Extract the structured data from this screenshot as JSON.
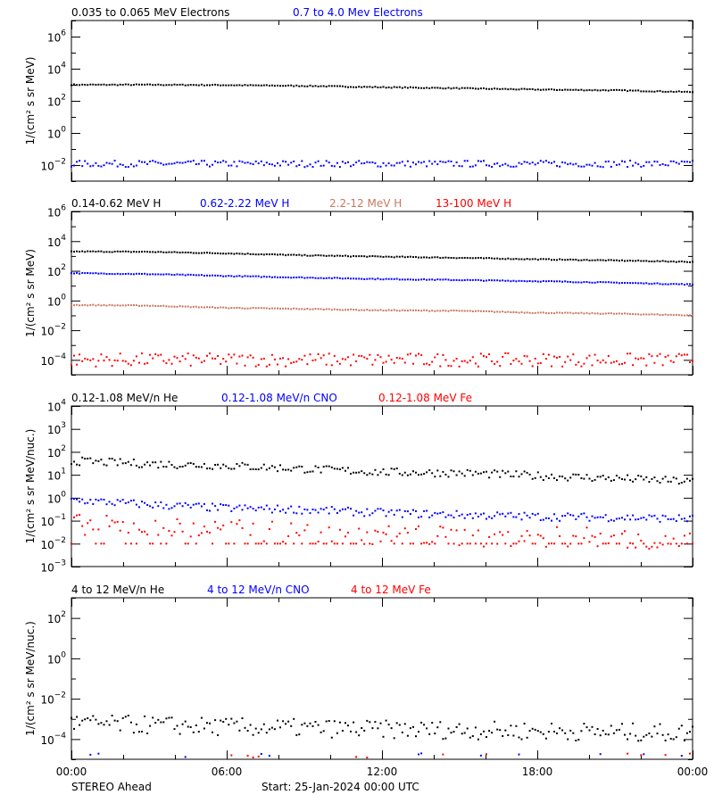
{
  "chart_data": [
    {
      "type": "scatter",
      "yscale": "log",
      "ylim": [
        0.001,
        10000000
      ],
      "ytick_exponents": [
        6,
        4,
        2,
        0,
        -2
      ],
      "ylabel": "1/(cm² s sr MeV)",
      "x_hours": [
        0,
        3,
        6,
        9,
        12,
        15,
        18,
        21,
        24
      ],
      "series": [
        {
          "name": "0.035 to 0.065 MeV Electrons",
          "color": "#000000",
          "values": [
            1000,
            1000,
            950,
            850,
            700,
            600,
            500,
            450,
            350
          ]
        },
        {
          "name": "0.7 to 4.0 Mev Electrons",
          "color": "#0000ff",
          "values": [
            0.012,
            0.012,
            0.012,
            0.012,
            0.012,
            0.012,
            0.012,
            0.012,
            0.012
          ]
        }
      ]
    },
    {
      "type": "scatter",
      "yscale": "log",
      "ylim": [
        1e-05,
        1000000
      ],
      "ytick_exponents": [
        6,
        4,
        2,
        0,
        -2,
        -4
      ],
      "ylabel": "1/(cm² s sr MeV)",
      "x_hours": [
        0,
        3,
        6,
        9,
        12,
        15,
        18,
        21,
        24
      ],
      "series": [
        {
          "name": "0.14-0.62 MeV H",
          "color": "#000000",
          "values": [
            2000,
            1900,
            1500,
            1100,
            900,
            750,
            600,
            500,
            400
          ]
        },
        {
          "name": "0.62-2.22 MeV H",
          "color": "#0000ff",
          "values": [
            70,
            60,
            45,
            35,
            28,
            24,
            20,
            16,
            12
          ]
        },
        {
          "name": "2.2-12 MeV H",
          "color": "#c87860",
          "values": [
            0.5,
            0.45,
            0.32,
            0.27,
            0.22,
            0.2,
            0.15,
            0.13,
            0.1
          ]
        },
        {
          "name": "13-100 MeV H",
          "color": "#ff0000",
          "values": [
            0.0001,
            0.0001,
            0.0001,
            0.0001,
            0.0001,
            0.0001,
            0.0001,
            0.0001,
            0.0001
          ]
        }
      ]
    },
    {
      "type": "scatter",
      "yscale": "log",
      "ylim": [
        0.001,
        10000
      ],
      "ytick_exponents": [
        4,
        3,
        2,
        1,
        0,
        -1,
        -2,
        -3
      ],
      "ylabel": "1/(cm² s sr MeV/nuc.)",
      "x_hours": [
        0,
        3,
        6,
        9,
        12,
        15,
        18,
        21,
        24
      ],
      "series": [
        {
          "name": "0.12-1.08 MeV/n He",
          "color": "#000000",
          "values": [
            40,
            30,
            25,
            18,
            13,
            12,
            9,
            7,
            5
          ]
        },
        {
          "name": "0.12-1.08 MeV/n CNO",
          "color": "#0000ff",
          "values": [
            0.8,
            0.5,
            0.35,
            0.3,
            0.22,
            0.18,
            0.15,
            0.14,
            0.12
          ]
        },
        {
          "name": "0.12-1.08 MeV Fe",
          "color": "#ff0000",
          "values": [
            0.07,
            0.05,
            0.04,
            0.03,
            0.025,
            0.02,
            0.02,
            0.018,
            0.015
          ]
        }
      ]
    },
    {
      "type": "scatter",
      "yscale": "log",
      "ylim": [
        1e-05,
        1000
      ],
      "ytick_exponents": [
        2,
        0,
        -2,
        -4
      ],
      "ylabel": "1/(cm² s sr MeV/nuc.)",
      "x_hours": [
        0,
        3,
        6,
        9,
        12,
        15,
        18,
        21,
        24
      ],
      "series": [
        {
          "name": "4 to 12 MeV/n He",
          "color": "#000000",
          "values": [
            0.0006,
            0.0005,
            0.0004,
            0.00035,
            0.0003,
            0.00028,
            0.00025,
            0.00022,
            0.0002
          ]
        },
        {
          "name": "4 to 12 MeV/n CNO",
          "color": "#0000ff",
          "values": [
            1e-05,
            1e-05,
            1e-05,
            1e-05,
            1e-05,
            1e-05,
            1e-05,
            1e-05,
            1e-05
          ]
        },
        {
          "name": "4 to 12 MeV Fe",
          "color": "#ff0000",
          "values": [
            1e-05,
            1e-05,
            1e-05,
            1e-05,
            1e-05,
            1e-05,
            1e-05,
            1e-05,
            1e-05
          ]
        }
      ]
    }
  ],
  "x_axis": {
    "tick_labels": [
      "00:00",
      "06:00",
      "12:00",
      "18:00",
      "00:00"
    ],
    "range_hours": [
      0,
      24
    ]
  },
  "footer": {
    "spacecraft": "STEREO Ahead",
    "start": "Start: 25-Jan-2024 00:00 UTC"
  }
}
